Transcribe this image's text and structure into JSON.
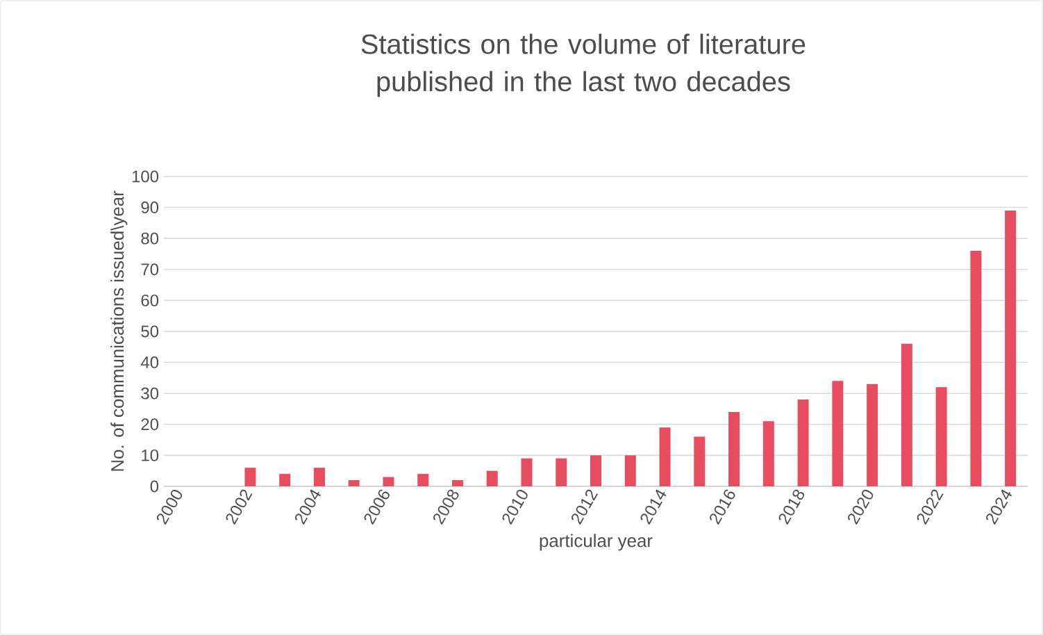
{
  "chart_data": {
    "type": "bar",
    "title": "Statistics on the volume of literature published in the last two decades",
    "xlabel": "particular year",
    "ylabel": "No. of communications issued\\year",
    "categories": [
      "2000",
      null,
      "2002",
      null,
      "2004",
      null,
      "2006",
      null,
      "2008",
      null,
      "2010",
      null,
      "2012",
      null,
      "2014",
      null,
      "2016",
      null,
      "2018",
      null,
      "2020",
      null,
      "2022",
      null,
      "2024"
    ],
    "values": [
      0,
      0,
      6,
      4,
      6,
      2,
      3,
      4,
      2,
      5,
      9,
      9,
      10,
      10,
      19,
      16,
      24,
      21,
      28,
      34,
      33,
      46,
      32,
      76,
      89
    ],
    "color": "#e84c5f",
    "ylim": [
      0,
      100
    ],
    "yticks": [
      0,
      10,
      20,
      30,
      40,
      50,
      60,
      70,
      80,
      90,
      100
    ],
    "grid": "y"
  }
}
